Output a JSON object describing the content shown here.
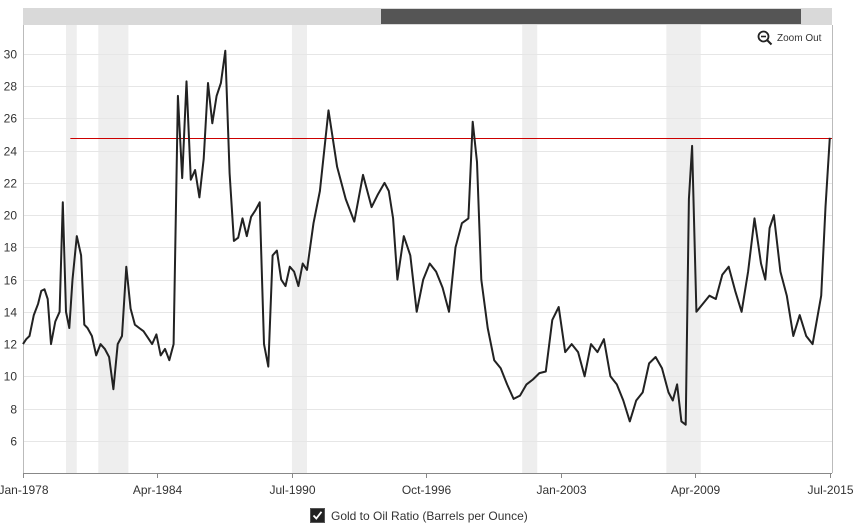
{
  "zoom": {
    "label": "Zoom Out",
    "icon": "zoom-out-icon"
  },
  "legend": {
    "label": "Gold to Oil Ratio (Barrels per Ounce)",
    "checked": true
  },
  "chart_data": {
    "type": "line",
    "xlabel": "",
    "ylabel": "",
    "xlim": [
      1978.0,
      2015.6
    ],
    "ylim": [
      4,
      31.8
    ],
    "yticks": [
      6,
      8,
      10,
      12,
      14,
      16,
      18,
      20,
      22,
      24,
      26,
      28,
      30
    ],
    "xticks": [
      {
        "label": "Jan-1978",
        "x": 1978.0
      },
      {
        "label": "Apr-1984",
        "x": 1984.25
      },
      {
        "label": "Jul-1990",
        "x": 1990.5
      },
      {
        "label": "Oct-1996",
        "x": 1996.75
      },
      {
        "label": "Jan-2003",
        "x": 2003.0
      },
      {
        "label": "Apr-2009",
        "x": 2009.25
      },
      {
        "label": "Jul-2015",
        "x": 2015.5
      }
    ],
    "grid": true,
    "legend_position": "bottom-center",
    "colors": {
      "line": "#222222",
      "reference": "#cc0000",
      "recession": "#eeeeee",
      "grid": "#e6e6e6"
    },
    "reference_line": {
      "y": 24.8,
      "x_start": 1980.2,
      "x_end": 2015.6
    },
    "recessions": [
      [
        1980.0,
        1980.5
      ],
      [
        1981.5,
        1982.9
      ],
      [
        1990.5,
        1991.2
      ],
      [
        2001.2,
        2001.9
      ],
      [
        2007.9,
        2009.5
      ]
    ],
    "series": [
      {
        "name": "Gold to Oil Ratio (Barrels per Ounce)",
        "x": [
          1978.0,
          1978.15,
          1978.3,
          1978.5,
          1978.7,
          1978.85,
          1979.0,
          1979.15,
          1979.3,
          1979.5,
          1979.7,
          1979.85,
          1980.0,
          1980.15,
          1980.3,
          1980.5,
          1980.7,
          1980.85,
          1981.0,
          1981.2,
          1981.4,
          1981.6,
          1981.8,
          1982.0,
          1982.2,
          1982.4,
          1982.6,
          1982.8,
          1983.0,
          1983.2,
          1983.4,
          1983.6,
          1983.8,
          1984.0,
          1984.2,
          1984.4,
          1984.6,
          1984.8,
          1985.0,
          1985.2,
          1985.4,
          1985.6,
          1985.8,
          1986.0,
          1986.2,
          1986.4,
          1986.6,
          1986.8,
          1987.0,
          1987.2,
          1987.4,
          1987.6,
          1987.8,
          1988.0,
          1988.2,
          1988.4,
          1988.6,
          1988.8,
          1989.0,
          1989.2,
          1989.4,
          1989.6,
          1989.8,
          1990.0,
          1990.2,
          1990.4,
          1990.6,
          1990.8,
          1991.0,
          1991.2,
          1991.5,
          1991.8,
          1992.2,
          1992.6,
          1993.0,
          1993.4,
          1993.8,
          1994.2,
          1994.5,
          1994.8,
          1995.0,
          1995.2,
          1995.4,
          1995.7,
          1996.0,
          1996.3,
          1996.6,
          1996.9,
          1997.2,
          1997.5,
          1997.8,
          1998.1,
          1998.4,
          1998.7,
          1998.9,
          1999.1,
          1999.3,
          1999.6,
          1999.9,
          2000.2,
          2000.5,
          2000.8,
          2001.1,
          2001.4,
          2001.7,
          2002.0,
          2002.3,
          2002.6,
          2002.9,
          2003.2,
          2003.5,
          2003.8,
          2004.1,
          2004.4,
          2004.7,
          2005.0,
          2005.3,
          2005.6,
          2005.9,
          2006.2,
          2006.5,
          2006.8,
          2007.1,
          2007.4,
          2007.7,
          2008.0,
          2008.2,
          2008.4,
          2008.6,
          2008.8,
          2008.95,
          2009.1,
          2009.3,
          2009.6,
          2009.9,
          2010.2,
          2010.5,
          2010.8,
          2011.1,
          2011.4,
          2011.7,
          2012.0,
          2012.3,
          2012.5,
          2012.7,
          2012.9,
          2013.2,
          2013.5,
          2013.8,
          2014.1,
          2014.4,
          2014.7,
          2014.9,
          2015.1,
          2015.3,
          2015.5
        ],
        "values": [
          12.0,
          12.3,
          12.5,
          13.8,
          14.5,
          15.3,
          15.4,
          14.8,
          12.0,
          13.4,
          14.0,
          20.8,
          14.0,
          13.0,
          16.0,
          18.7,
          17.5,
          13.2,
          13.0,
          12.5,
          11.3,
          12.0,
          11.7,
          11.2,
          9.2,
          12.0,
          12.5,
          16.8,
          14.2,
          13.2,
          13.0,
          12.8,
          12.4,
          12.0,
          12.6,
          11.3,
          11.7,
          11.0,
          12.0,
          27.4,
          22.3,
          28.3,
          22.2,
          22.8,
          21.1,
          23.5,
          28.2,
          25.7,
          27.4,
          28.2,
          30.2,
          22.6,
          18.4,
          18.6,
          19.8,
          18.7,
          19.9,
          20.3,
          20.8,
          12.0,
          10.6,
          17.5,
          17.8,
          16.0,
          15.6,
          16.8,
          16.5,
          15.6,
          17.0,
          16.6,
          19.5,
          21.5,
          26.5,
          23.0,
          21.0,
          19.6,
          22.5,
          20.5,
          21.3,
          22.0,
          21.5,
          19.8,
          16.0,
          18.7,
          17.5,
          14.0,
          16.0,
          17.0,
          16.5,
          15.5,
          14.0,
          18.0,
          19.5,
          19.8,
          25.8,
          23.3,
          16.0,
          13.0,
          11.0,
          10.5,
          9.5,
          8.6,
          8.8,
          9.5,
          9.8,
          10.2,
          10.3,
          13.5,
          14.3,
          11.5,
          12.0,
          11.5,
          10.0,
          12.0,
          11.5,
          12.3,
          10.0,
          9.5,
          8.5,
          7.2,
          8.5,
          9.0,
          10.8,
          11.2,
          10.5,
          9.0,
          8.5,
          9.5,
          7.2,
          7.0,
          21.0,
          24.3,
          14.0,
          14.5,
          15.0,
          14.8,
          16.3,
          16.8,
          15.3,
          14.0,
          16.5,
          19.8,
          17.0,
          16.0,
          19.2,
          20.0,
          16.5,
          15.0,
          12.5,
          13.8,
          12.5,
          12.0,
          13.5,
          15.0,
          20.5,
          24.8
        ]
      }
    ]
  }
}
